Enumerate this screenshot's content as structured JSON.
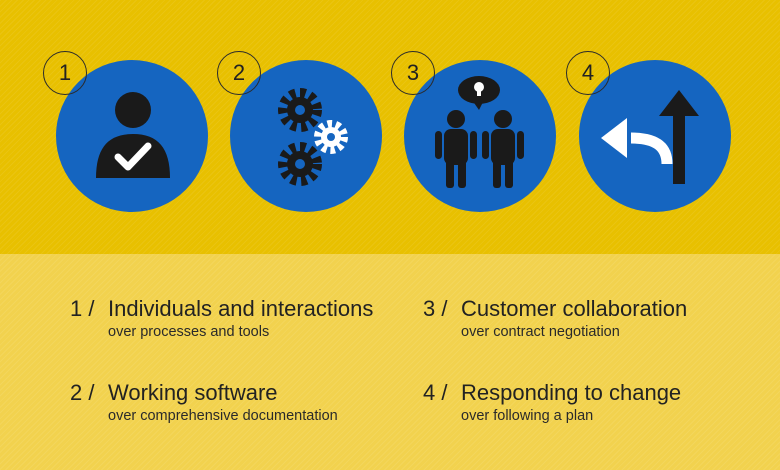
{
  "steps": [
    {
      "num": "1",
      "icon": "person-check-icon"
    },
    {
      "num": "2",
      "icon": "gears-icon"
    },
    {
      "num": "3",
      "icon": "collaboration-people-icon"
    },
    {
      "num": "4",
      "icon": "change-arrows-icon"
    }
  ],
  "items": [
    {
      "prefix": "1 /",
      "title": "Individuals and interactions",
      "subtitle": "over processes and tools"
    },
    {
      "prefix": "2 /",
      "title": "Working software",
      "subtitle": "over comprehensive documentation"
    },
    {
      "prefix": "3 /",
      "title": "Customer collaboration",
      "subtitle": "over contract negotiation"
    },
    {
      "prefix": "4 /",
      "title": "Responding to change",
      "subtitle": "over following a plan"
    }
  ],
  "colors": {
    "top_bg": "#e8c000",
    "bottom_bg": "#f2d24e",
    "circle": "#1565c0",
    "icon_dark": "#1a1a1a",
    "icon_light": "#ffffff"
  }
}
